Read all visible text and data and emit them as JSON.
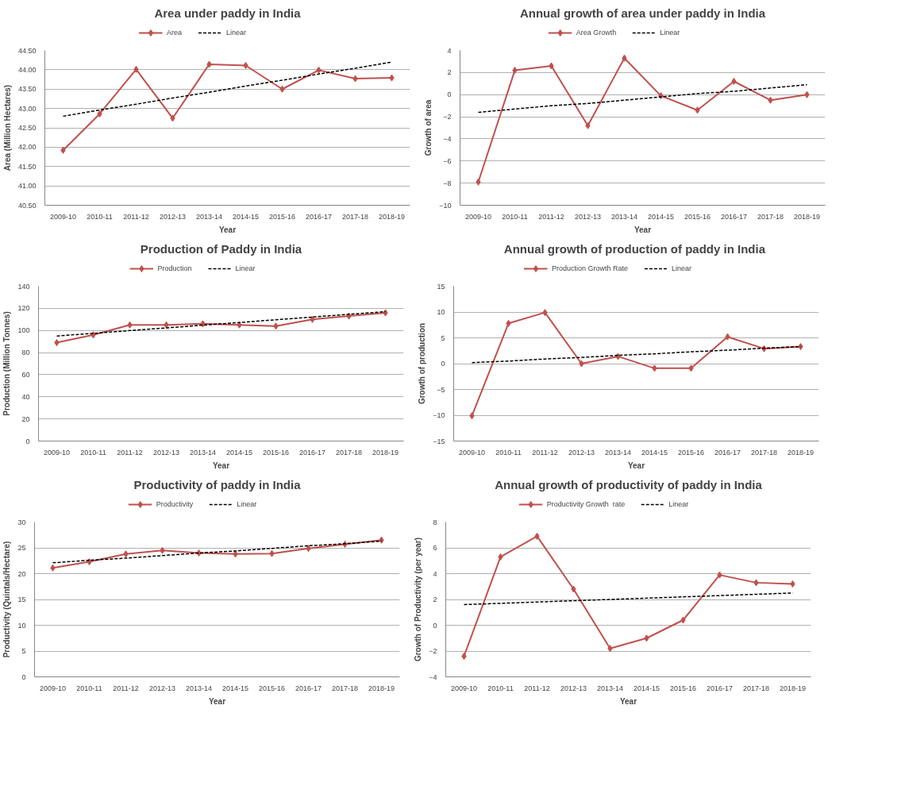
{
  "chart_data": [
    {
      "type": "line",
      "title": "Area under paddy in India",
      "xlabel": "Year",
      "ylabel": "Area (Million Hectares)",
      "categories": [
        "2009-10",
        "2010-11",
        "2011-12",
        "2012-13",
        "2013-14",
        "2014-15",
        "2015-16",
        "2016-17",
        "2017-18",
        "2018-19"
      ],
      "series": [
        {
          "name": "Area",
          "color": "#c0504d",
          "marker": "diamond",
          "line_style": "solid",
          "values": [
            41.92,
            42.86,
            44.01,
            42.75,
            44.14,
            44.11,
            43.5,
            43.99,
            43.77,
            43.79
          ]
        },
        {
          "name": "Linear",
          "color": "#000000",
          "marker": "none",
          "line_style": "dashed",
          "values": [
            42.8,
            42.96,
            43.11,
            43.27,
            43.42,
            43.58,
            43.73,
            43.89,
            44.04,
            44.2
          ]
        }
      ],
      "ylim": [
        40.5,
        44.5
      ],
      "yticks": [
        {
          "value": 40.5,
          "label": "40.50"
        },
        {
          "value": 41,
          "label": "41.00"
        },
        {
          "value": 41.5,
          "label": "41.50"
        },
        {
          "value": 42,
          "label": "42.00"
        },
        {
          "value": 42.5,
          "label": "42.50"
        },
        {
          "value": 43,
          "label": "43.00"
        },
        {
          "value": 43.5,
          "label": "43.50"
        },
        {
          "value": 44,
          "label": "44.00"
        },
        {
          "value": 44.5,
          "label": "44.50"
        }
      ],
      "grid": "y",
      "legend": "top"
    },
    {
      "type": "line",
      "title": "Annual growth of area under paddy in India",
      "xlabel": "Year",
      "ylabel": "Growth of area",
      "categories": [
        "2009-10",
        "2010-11",
        "2011-12",
        "2012-13",
        "2013-14",
        "2014-15",
        "2015-16",
        "2016-17",
        "2017-18",
        "2018-19"
      ],
      "series": [
        {
          "name": "Area Growth",
          "color": "#c0504d",
          "marker": "diamond",
          "line_style": "solid",
          "values": [
            -7.9,
            2.2,
            2.6,
            -2.8,
            3.3,
            -0.1,
            -1.4,
            1.2,
            -0.5,
            0.0
          ]
        },
        {
          "name": "Linear",
          "color": "#000000",
          "marker": "none",
          "line_style": "dashed",
          "values": [
            -1.6,
            -1.3,
            -1.0,
            -0.8,
            -0.5,
            -0.2,
            0.1,
            0.3,
            0.6,
            0.9
          ]
        }
      ],
      "ylim": [
        -10,
        4
      ],
      "yticks": [
        -10,
        -8,
        -6,
        -4,
        -2,
        0,
        2,
        4
      ],
      "grid": "y",
      "legend": "top"
    },
    {
      "type": "line",
      "title": "Production of Paddy in India",
      "xlabel": "Year",
      "ylabel": "Production (Million Tonnes)",
      "categories": [
        "2009-10",
        "2010-11",
        "2011-12",
        "2012-13",
        "2013-14",
        "2014-15",
        "2015-16",
        "2016-17",
        "2017-18",
        "2018-19"
      ],
      "series": [
        {
          "name": "Production",
          "color": "#c0504d",
          "marker": "diamond",
          "line_style": "solid",
          "values": [
            89,
            96,
            105,
            105,
            106,
            105,
            104,
            110,
            113,
            116
          ]
        },
        {
          "name": "Linear",
          "color": "#000000",
          "marker": "none",
          "line_style": "dashed",
          "values": [
            95,
            97.4,
            99.9,
            102.3,
            104.8,
            107.2,
            109.7,
            112.1,
            114.6,
            117
          ]
        }
      ],
      "ylim": [
        0,
        140
      ],
      "yticks": [
        0,
        20,
        40,
        60,
        80,
        100,
        120,
        140
      ],
      "grid": "y",
      "legend": "top"
    },
    {
      "type": "line",
      "title": "Annual growth of production  of paddy in India",
      "xlabel": "Year",
      "ylabel": "Growth of production",
      "categories": [
        "2009-10",
        "2010-11",
        "2011-12",
        "2012-13",
        "2013-14",
        "2014-15",
        "2015-16",
        "2016-17",
        "2017-18",
        "2018-19"
      ],
      "series": [
        {
          "name": "Production Growth Rate",
          "color": "#c0504d",
          "marker": "diamond",
          "line_style": "solid",
          "values": [
            -10.1,
            7.8,
            9.9,
            0,
            1.4,
            -0.9,
            -0.9,
            5.2,
            2.9,
            3.3
          ]
        },
        {
          "name": "Linear",
          "color": "#000000",
          "marker": "none",
          "line_style": "dashed",
          "values": [
            0.2,
            0.5,
            0.9,
            1.2,
            1.6,
            1.9,
            2.3,
            2.6,
            3.0,
            3.3
          ]
        }
      ],
      "ylim": [
        -15,
        15
      ],
      "yticks": [
        -15,
        -10,
        -5,
        0,
        5,
        10,
        15
      ],
      "grid": "y",
      "legend": "top"
    },
    {
      "type": "line",
      "title": "Productivity of paddy in India",
      "xlabel": "Year",
      "ylabel": "Productivity (Quintals/Hectare)",
      "categories": [
        "2009-10",
        "2010-11",
        "2011-12",
        "2012-13",
        "2013-14",
        "2014-15",
        "2015-16",
        "2016-17",
        "2017-18",
        "2018-19"
      ],
      "series": [
        {
          "name": "Productivity",
          "color": "#c0504d",
          "marker": "diamond",
          "line_style": "solid",
          "values": [
            21.1,
            22.3,
            23.8,
            24.5,
            24.0,
            23.8,
            23.9,
            24.9,
            25.7,
            26.5
          ]
        },
        {
          "name": "Linear",
          "color": "#000000",
          "marker": "none",
          "line_style": "dashed",
          "values": [
            22.1,
            22.6,
            23.0,
            23.5,
            24.0,
            24.4,
            24.9,
            25.4,
            25.8,
            26.3
          ]
        }
      ],
      "ylim": [
        0,
        30
      ],
      "yticks": [
        0,
        5,
        10,
        15,
        20,
        25,
        30
      ],
      "grid": "y",
      "legend": "top"
    },
    {
      "type": "line",
      "title": "Annual growth of productivity of paddy in India",
      "xlabel": "Year",
      "ylabel": "Growth of Productivity (per year)",
      "categories": [
        "2009-10",
        "2010-11",
        "2011-12",
        "2012-13",
        "2013-14",
        "2014-15",
        "2015-16",
        "2016-17",
        "2017-18",
        "2018-19"
      ],
      "series": [
        {
          "name": "Productivity Growth  rate",
          "color": "#c0504d",
          "marker": "diamond",
          "line_style": "solid",
          "values": [
            -2.4,
            5.3,
            6.9,
            2.8,
            -1.8,
            -1.0,
            0.4,
            3.9,
            3.3,
            3.2
          ]
        },
        {
          "name": "Linear",
          "color": "#000000",
          "marker": "none",
          "line_style": "dashed",
          "values": [
            1.6,
            1.7,
            1.8,
            1.9,
            2.0,
            2.1,
            2.2,
            2.3,
            2.4,
            2.5
          ]
        }
      ],
      "ylim": [
        -4,
        8
      ],
      "yticks": [
        -4,
        -2,
        0,
        2,
        4,
        6,
        8
      ],
      "grid": "y",
      "legend": "top"
    }
  ]
}
